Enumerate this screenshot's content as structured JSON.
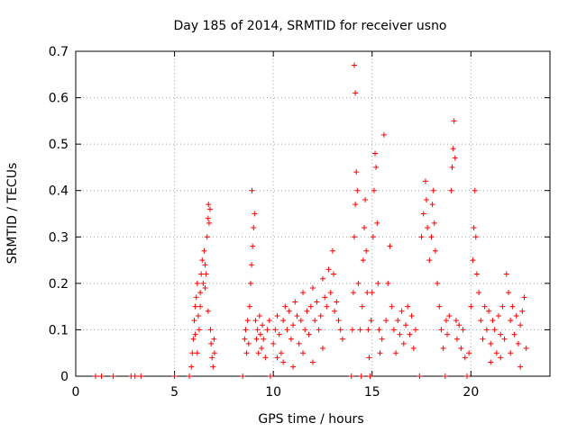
{
  "chart_data": {
    "type": "scatter",
    "title": "Day 185 of 2014, SRMTID for receiver usno",
    "xlabel": "GPS time / hours",
    "ylabel": "SRMTID / TECUs",
    "xlim": [
      0,
      24
    ],
    "ylim": [
      0,
      0.7
    ],
    "xticks": [
      0,
      5,
      10,
      15,
      20
    ],
    "yticks": [
      0,
      0.1,
      0.2,
      0.3,
      0.4,
      0.5,
      0.6,
      0.7
    ],
    "grid": true,
    "marker": "+",
    "color": "#ff0000",
    "series": [
      {
        "points": [
          [
            1.0,
            0.0
          ],
          [
            1.3,
            0.0
          ],
          [
            1.9,
            0.0
          ],
          [
            2.8,
            0.0
          ],
          [
            3.0,
            0.0
          ],
          [
            3.3,
            0.0
          ],
          [
            5.0,
            0.0
          ],
          [
            5.75,
            0.0
          ],
          [
            5.85,
            0.02
          ],
          [
            5.9,
            0.05
          ],
          [
            5.95,
            0.08
          ],
          [
            6.0,
            0.12
          ],
          [
            6.05,
            0.15
          ],
          [
            6.1,
            0.17
          ],
          [
            6.15,
            0.2
          ],
          [
            6.2,
            0.13
          ],
          [
            6.25,
            0.1
          ],
          [
            6.3,
            0.18
          ],
          [
            6.35,
            0.22
          ],
          [
            6.4,
            0.25
          ],
          [
            6.45,
            0.2
          ],
          [
            6.5,
            0.27
          ],
          [
            6.55,
            0.24
          ],
          [
            6.6,
            0.22
          ],
          [
            6.65,
            0.3
          ],
          [
            6.7,
            0.34
          ],
          [
            6.72,
            0.37
          ],
          [
            6.75,
            0.33
          ],
          [
            6.8,
            0.36
          ],
          [
            6.82,
            0.1
          ],
          [
            6.85,
            0.07
          ],
          [
            6.9,
            0.04
          ],
          [
            6.95,
            0.02
          ],
          [
            7.0,
            0.08
          ],
          [
            7.02,
            0.05
          ],
          [
            6.05,
            0.09
          ],
          [
            6.15,
            0.05
          ],
          [
            6.3,
            0.15
          ],
          [
            6.55,
            0.19
          ],
          [
            6.7,
            0.14
          ],
          [
            8.45,
            0.0
          ],
          [
            8.55,
            0.08
          ],
          [
            8.6,
            0.1
          ],
          [
            8.65,
            0.05
          ],
          [
            8.7,
            0.12
          ],
          [
            8.75,
            0.07
          ],
          [
            8.8,
            0.15
          ],
          [
            8.85,
            0.2
          ],
          [
            8.9,
            0.24
          ],
          [
            8.95,
            0.28
          ],
          [
            9.0,
            0.32
          ],
          [
            9.05,
            0.35
          ],
          [
            8.92,
            0.4
          ],
          [
            9.1,
            0.12
          ],
          [
            9.15,
            0.08
          ],
          [
            9.2,
            0.1
          ],
          [
            9.25,
            0.05
          ],
          [
            9.3,
            0.13
          ],
          [
            9.35,
            0.09
          ],
          [
            9.4,
            0.06
          ],
          [
            9.45,
            0.11
          ],
          [
            9.5,
            0.08
          ],
          [
            9.6,
            0.04
          ],
          [
            9.7,
            0.1
          ],
          [
            9.8,
            0.12
          ],
          [
            9.85,
            0.0
          ],
          [
            10.0,
            0.07
          ],
          [
            10.1,
            0.1
          ],
          [
            10.2,
            0.13
          ],
          [
            10.3,
            0.09
          ],
          [
            10.4,
            0.05
          ],
          [
            10.5,
            0.12
          ],
          [
            10.6,
            0.15
          ],
          [
            10.7,
            0.1
          ],
          [
            10.8,
            0.14
          ],
          [
            10.9,
            0.08
          ],
          [
            11.0,
            0.11
          ],
          [
            11.1,
            0.16
          ],
          [
            11.2,
            0.13
          ],
          [
            11.3,
            0.07
          ],
          [
            11.4,
            0.12
          ],
          [
            11.5,
            0.18
          ],
          [
            11.6,
            0.1
          ],
          [
            11.7,
            0.14
          ],
          [
            11.8,
            0.09
          ],
          [
            11.9,
            0.15
          ],
          [
            12.0,
            0.19
          ],
          [
            12.1,
            0.12
          ],
          [
            12.2,
            0.16
          ],
          [
            12.3,
            0.1
          ],
          [
            12.4,
            0.13
          ],
          [
            12.5,
            0.21
          ],
          [
            12.6,
            0.17
          ],
          [
            12.7,
            0.15
          ],
          [
            12.8,
            0.23
          ],
          [
            12.9,
            0.18
          ],
          [
            13.0,
            0.27
          ],
          [
            13.05,
            0.22
          ],
          [
            13.1,
            0.14
          ],
          [
            13.2,
            0.16
          ],
          [
            13.3,
            0.12
          ],
          [
            13.4,
            0.1
          ],
          [
            13.5,
            0.08
          ],
          [
            10.5,
            0.03
          ],
          [
            11.0,
            0.02
          ],
          [
            11.5,
            0.05
          ],
          [
            12.0,
            0.03
          ],
          [
            12.5,
            0.06
          ],
          [
            10.2,
            0.04
          ],
          [
            13.95,
            0.0
          ],
          [
            14.0,
            0.1
          ],
          [
            14.05,
            0.18
          ],
          [
            14.1,
            0.3
          ],
          [
            14.15,
            0.37
          ],
          [
            14.1,
            0.67
          ],
          [
            14.15,
            0.61
          ],
          [
            14.2,
            0.44
          ],
          [
            14.25,
            0.4
          ],
          [
            14.3,
            0.2
          ],
          [
            14.4,
            0.1
          ],
          [
            14.45,
            0.0
          ],
          [
            14.5,
            0.15
          ],
          [
            14.55,
            0.25
          ],
          [
            14.6,
            0.32
          ],
          [
            14.65,
            0.38
          ],
          [
            14.7,
            0.27
          ],
          [
            14.75,
            0.18
          ],
          [
            14.8,
            0.1
          ],
          [
            14.85,
            0.04
          ],
          [
            14.9,
            0.0
          ],
          [
            14.95,
            0.12
          ],
          [
            15.0,
            0.18
          ],
          [
            15.05,
            0.3
          ],
          [
            15.1,
            0.4
          ],
          [
            15.15,
            0.48
          ],
          [
            15.2,
            0.45
          ],
          [
            15.25,
            0.33
          ],
          [
            15.3,
            0.2
          ],
          [
            15.35,
            0.1
          ],
          [
            15.4,
            0.05
          ],
          [
            15.5,
            0.08
          ],
          [
            15.6,
            0.52
          ],
          [
            15.7,
            0.12
          ],
          [
            15.8,
            0.2
          ],
          [
            15.9,
            0.28
          ],
          [
            16.0,
            0.15
          ],
          [
            16.1,
            0.1
          ],
          [
            16.2,
            0.05
          ],
          [
            16.3,
            0.12
          ],
          [
            16.4,
            0.09
          ],
          [
            16.5,
            0.14
          ],
          [
            16.6,
            0.07
          ],
          [
            16.7,
            0.11
          ],
          [
            16.8,
            0.15
          ],
          [
            16.9,
            0.09
          ],
          [
            17.0,
            0.13
          ],
          [
            17.1,
            0.06
          ],
          [
            17.2,
            0.1
          ],
          [
            17.4,
            0.0
          ],
          [
            17.5,
            0.3
          ],
          [
            17.6,
            0.35
          ],
          [
            17.7,
            0.42
          ],
          [
            17.75,
            0.38
          ],
          [
            17.8,
            0.32
          ],
          [
            17.9,
            0.25
          ],
          [
            18.0,
            0.3
          ],
          [
            18.05,
            0.37
          ],
          [
            18.1,
            0.4
          ],
          [
            18.15,
            0.33
          ],
          [
            18.2,
            0.27
          ],
          [
            18.3,
            0.2
          ],
          [
            18.4,
            0.15
          ],
          [
            18.5,
            0.1
          ],
          [
            18.6,
            0.06
          ],
          [
            18.7,
            0.0
          ],
          [
            18.75,
            0.12
          ],
          [
            18.8,
            0.09
          ],
          [
            18.9,
            0.13
          ],
          [
            19.0,
            0.4
          ],
          [
            19.05,
            0.45
          ],
          [
            19.1,
            0.49
          ],
          [
            19.15,
            0.55
          ],
          [
            19.2,
            0.47
          ],
          [
            19.25,
            0.12
          ],
          [
            19.3,
            0.08
          ],
          [
            19.4,
            0.11
          ],
          [
            19.5,
            0.06
          ],
          [
            19.6,
            0.1
          ],
          [
            19.7,
            0.04
          ],
          [
            19.8,
            0.0
          ],
          [
            19.9,
            0.05
          ],
          [
            20.0,
            0.15
          ],
          [
            20.1,
            0.25
          ],
          [
            20.15,
            0.32
          ],
          [
            20.2,
            0.4
          ],
          [
            20.25,
            0.3
          ],
          [
            20.3,
            0.22
          ],
          [
            20.4,
            0.18
          ],
          [
            20.5,
            0.12
          ],
          [
            20.6,
            0.08
          ],
          [
            20.7,
            0.15
          ],
          [
            20.8,
            0.1
          ],
          [
            20.9,
            0.14
          ],
          [
            21.0,
            0.07
          ],
          [
            21.1,
            0.12
          ],
          [
            21.2,
            0.1
          ],
          [
            21.3,
            0.05
          ],
          [
            21.4,
            0.13
          ],
          [
            21.5,
            0.09
          ],
          [
            21.6,
            0.15
          ],
          [
            21.7,
            0.08
          ],
          [
            21.8,
            0.22
          ],
          [
            21.9,
            0.18
          ],
          [
            22.0,
            0.12
          ],
          [
            22.1,
            0.15
          ],
          [
            22.2,
            0.09
          ],
          [
            22.3,
            0.13
          ],
          [
            22.4,
            0.07
          ],
          [
            22.5,
            0.11
          ],
          [
            22.6,
            0.14
          ],
          [
            22.7,
            0.17
          ],
          [
            22.8,
            0.06
          ],
          [
            21.0,
            0.03
          ],
          [
            21.5,
            0.04
          ],
          [
            22.0,
            0.05
          ],
          [
            22.5,
            0.02
          ]
        ]
      }
    ]
  }
}
